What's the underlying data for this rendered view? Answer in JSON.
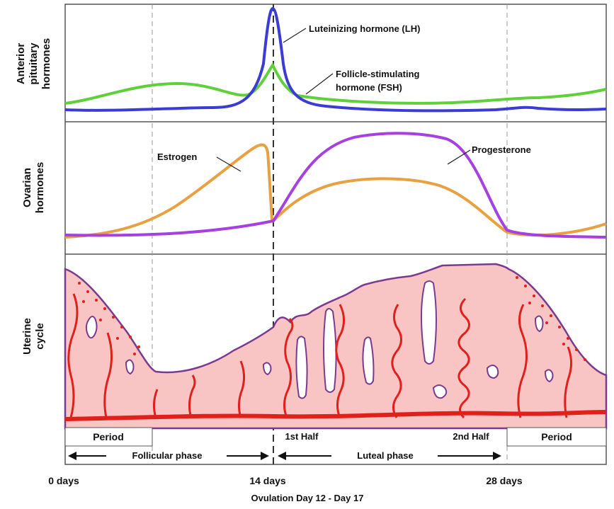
{
  "panels": {
    "pituitary": {
      "title_line1": "Anterior",
      "title_line2": "pituitary",
      "title_line3": "hormones"
    },
    "ovarian": {
      "title_line1": "Ovarian",
      "title_line2": "hormones"
    },
    "uterine": {
      "title_line1": "Uterine",
      "title_line2": "cycle"
    }
  },
  "curves": {
    "lh": {
      "label": "Luteinizing hormone (LH)",
      "color": "#3b3bd6"
    },
    "fsh": {
      "label_line1": "Follicle-stimulating",
      "label_line2": "hormone (FSH)",
      "color": "#5fcf3a"
    },
    "estrogen": {
      "label": "Estrogen",
      "color": "#e8a040"
    },
    "progesterone": {
      "label": "Progesterone",
      "color": "#a640e0"
    }
  },
  "uterine_colors": {
    "tissue": "#f9c4c4",
    "outline": "#7a3b8f",
    "vessel": "#e0201a"
  },
  "bands": {
    "period_left": "Period",
    "first_half": "1st Half",
    "second_half": "2nd Half",
    "period_right": "Period",
    "follicular": "Follicular phase",
    "luteal": "Luteal phase"
  },
  "axis": {
    "tick_0": "0 days",
    "tick_14": "14 days",
    "tick_28": "28 days",
    "caption": "Ovulation Day 12 - Day 17"
  }
}
